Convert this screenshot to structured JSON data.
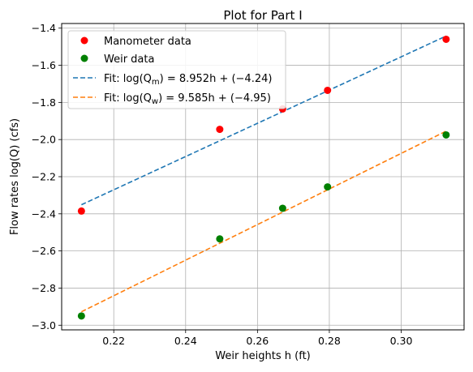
{
  "chart_data": {
    "type": "scatter",
    "title": "Plot for Part I",
    "xlabel": "Weir heights h (ft)",
    "ylabel": "Flow rates log(Q) (cfs)",
    "xlim": [
      0.2055,
      0.3175
    ],
    "ylim": [
      -3.025,
      -1.375
    ],
    "grid": true,
    "legend_position": "top-left",
    "x_ticks": [
      {
        "value": 0.22,
        "label": "0.22"
      },
      {
        "value": 0.24,
        "label": "0.24"
      },
      {
        "value": 0.26,
        "label": "0.26"
      },
      {
        "value": 0.28,
        "label": "0.28"
      },
      {
        "value": 0.3,
        "label": "0.30"
      }
    ],
    "y_ticks": [
      {
        "value": -1.4,
        "label": "−1.4"
      },
      {
        "value": -1.6,
        "label": "−1.6"
      },
      {
        "value": -1.8,
        "label": "−1.8"
      },
      {
        "value": -2.0,
        "label": "−2.0"
      },
      {
        "value": -2.2,
        "label": "−2.2"
      },
      {
        "value": -2.4,
        "label": "−2.4"
      },
      {
        "value": -2.6,
        "label": "−2.6"
      },
      {
        "value": -2.8,
        "label": "−2.8"
      },
      {
        "value": -3.0,
        "label": "−3.0"
      }
    ],
    "scatter_series": [
      {
        "name": "Manometer data",
        "color": "#ff0000",
        "x": [
          0.211,
          0.2495,
          0.267,
          0.2795,
          0.3125
        ],
        "y": [
          -2.385,
          -1.945,
          -1.835,
          -1.735,
          -1.46
        ]
      },
      {
        "name": "Weir data",
        "color": "#008000",
        "x": [
          0.211,
          0.2495,
          0.267,
          0.2795,
          0.3125
        ],
        "y": [
          -2.95,
          -2.535,
          -2.37,
          -2.255,
          -1.975
        ]
      }
    ],
    "fit_series": [
      {
        "name_prefix": "Fit:  log(Q",
        "name_sub": "m",
        "name_suffix": ") = 8.952h + (−4.24)",
        "color": "#1f77b4",
        "slope": 8.952,
        "intercept": -4.24,
        "x_start": 0.211,
        "x_end": 0.3125
      },
      {
        "name_prefix": "Fit: log(Q",
        "name_sub": "w",
        "name_suffix": ") = 9.585h + (−4.95)",
        "color": "#ff7f0e",
        "slope": 9.585,
        "intercept": -4.95,
        "x_start": 0.211,
        "x_end": 0.3125
      }
    ]
  }
}
